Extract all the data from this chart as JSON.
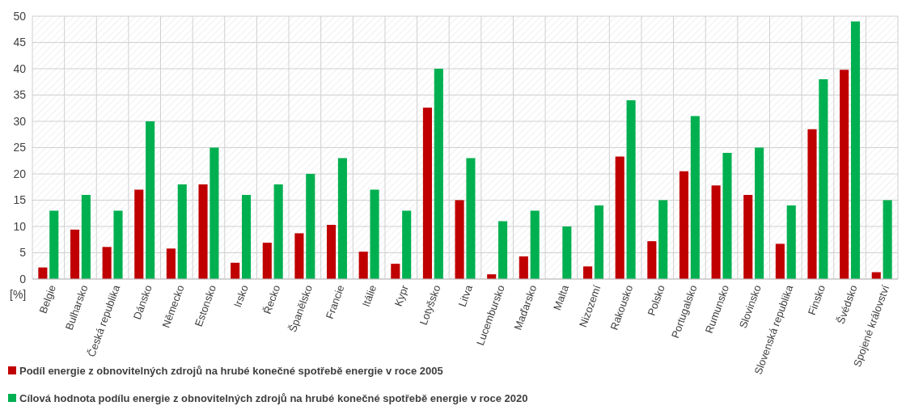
{
  "chart_data": {
    "type": "bar",
    "ylabel": "[%]",
    "categories": [
      "Belgie",
      "Bulharsko",
      "Česká republika",
      "Dánsko",
      "Německo",
      "Estonsko",
      "Irsko",
      "Řecko",
      "Španělsko",
      "Francie",
      "Itálie",
      "Kypr",
      "Lotyšsko",
      "Litva",
      "Lucembursko",
      "Maďarsko",
      "Malta",
      "Nizozemí",
      "Rakousko",
      "Polsko",
      "Portugalsko",
      "Rumunsko",
      "Slovinsko",
      "Slovenská republika",
      "Finsko",
      "Švédsko",
      "Spojené království"
    ],
    "series": [
      {
        "name": "Podíl energie z obnovitelných zdrojů na hrubé konečné spotřebě energie v roce 2005",
        "color": "#c00000",
        "values": [
          2.2,
          9.4,
          6.1,
          17,
          5.8,
          18,
          3.1,
          6.9,
          8.7,
          10.3,
          5.2,
          2.9,
          32.6,
          15,
          0.9,
          4.3,
          0,
          2.4,
          23.3,
          7.2,
          20.5,
          17.8,
          16,
          6.7,
          28.5,
          39.8,
          1.3
        ]
      },
      {
        "name": "Cílová hodnota podílu energie z obnovitelných zdrojů na hrubé konečné spotřebě energie v roce 2020",
        "color": "#00b050",
        "values": [
          13,
          16,
          13,
          30,
          18,
          25,
          16,
          18,
          20,
          23,
          17,
          13,
          40,
          23,
          11,
          13,
          10,
          14,
          34,
          15,
          31,
          24,
          25,
          14,
          38,
          49,
          15
        ]
      }
    ],
    "ylim": [
      0,
      50
    ],
    "yticks": [
      0,
      5,
      10,
      15,
      20,
      25,
      30,
      35,
      40,
      45,
      50
    ],
    "grid": true,
    "legend": "bottom"
  }
}
